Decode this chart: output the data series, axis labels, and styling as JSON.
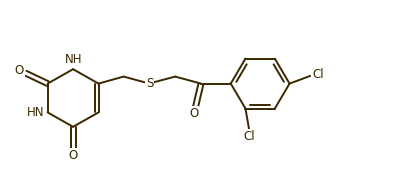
{
  "background_color": "#ffffff",
  "line_color": "#3a2800",
  "line_width": 1.4,
  "font_size": 8.5,
  "figsize": [
    3.97,
    1.96
  ],
  "dpi": 100,
  "xlim": [
    0,
    11
  ],
  "ylim": [
    0,
    5.5
  ]
}
